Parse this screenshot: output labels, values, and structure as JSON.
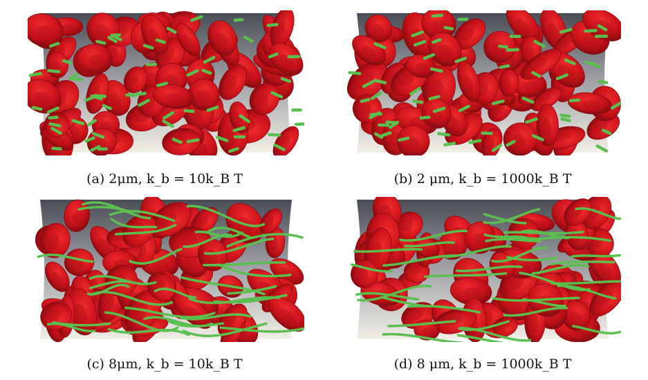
{
  "figure": {
    "panels": [
      {
        "id": "a",
        "caption": "(a) 2μm, k_b = 10k_B T",
        "length_um": 2,
        "bending_kbT": 10,
        "fiber": "short"
      },
      {
        "id": "b",
        "caption": "(b) 2 μm, k_b = 1000k_B T",
        "length_um": 2,
        "bending_kbT": 1000,
        "fiber": "short"
      },
      {
        "id": "c",
        "caption": "(c) 8μm, k_b = 10k_B T",
        "length_um": 8,
        "bending_kbT": 10,
        "fiber": "long-flexible"
      },
      {
        "id": "d",
        "caption": "(d) 8 μm, k_b = 1000k_B T",
        "length_um": 8,
        "bending_kbT": 1000,
        "fiber": "long-stiff"
      }
    ],
    "colors": {
      "cell": "#c8121a",
      "cell_highlight": "#ef2a2e",
      "cell_shadow": "#7d0a0e",
      "fiber": "#5bbf4f",
      "wall_top": "#4a4d55",
      "wall_bottom": "#f1eee6"
    }
  }
}
